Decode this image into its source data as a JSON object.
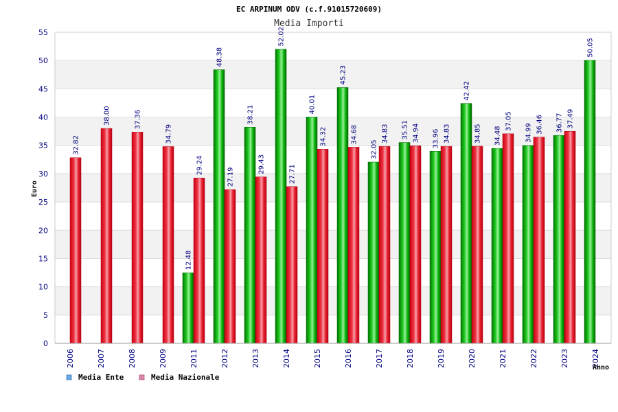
{
  "chart_data": {
    "type": "bar",
    "title": "EC ARPINUM ODV (c.f.91015720609)",
    "subtitle": "Media Importi",
    "ylabel": "Euro",
    "xlabel": "Anno",
    "ylim": [
      0,
      55
    ],
    "yticks": [
      "0",
      "5",
      "10",
      "15",
      "20",
      "25",
      "30",
      "35",
      "40",
      "45",
      "50",
      "55"
    ],
    "grid": true,
    "legend_position": "bottom-left",
    "categories": [
      "2006",
      "2007",
      "2008",
      "2009",
      "2011",
      "2012",
      "2013",
      "2014",
      "2015",
      "2016",
      "2017",
      "2018",
      "2019",
      "2020",
      "2021",
      "2022",
      "2023",
      "2024"
    ],
    "series": [
      {
        "name": "Media Ente",
        "color": "#00aa00",
        "legend_color": "#66aaee",
        "values": [
          null,
          null,
          null,
          null,
          12.48,
          48.38,
          38.21,
          52.02,
          40.01,
          45.23,
          32.05,
          35.51,
          33.96,
          42.42,
          34.48,
          34.99,
          36.77,
          50.05
        ],
        "labels": [
          "",
          "",
          "",
          "",
          "12.48",
          "48.38",
          "38.21",
          "52.02",
          "40.01",
          "45.23",
          "32.05",
          "35.51",
          "33.96",
          "42.42",
          "34.48",
          "34.99",
          "36.77",
          "50.05"
        ]
      },
      {
        "name": "Media Nazionale",
        "color": "#ee1122",
        "legend_color": "#dd88aa",
        "values": [
          32.82,
          38.0,
          37.36,
          34.79,
          29.24,
          27.19,
          29.43,
          27.71,
          34.32,
          34.68,
          34.83,
          34.94,
          34.83,
          34.85,
          37.05,
          36.46,
          37.49,
          null
        ],
        "labels": [
          "32.82",
          "38.00",
          "37.36",
          "34.79",
          "29.24",
          "27.19",
          "29.43",
          "27.71",
          "34.32",
          "34.68",
          "34.83",
          "34.94",
          "34.83",
          "34.85",
          "37.05",
          "36.46",
          "37.49",
          ""
        ]
      }
    ]
  }
}
